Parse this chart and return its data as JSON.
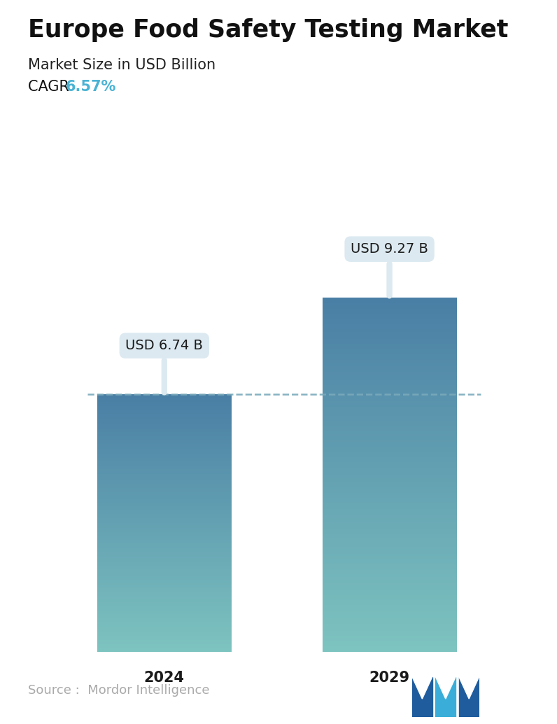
{
  "title": "Europe Food Safety Testing Market",
  "subtitle": "Market Size in USD Billion",
  "cagr_label": "CAGR ",
  "cagr_value": "6.57%",
  "cagr_color": "#4ab3d4",
  "categories": [
    "2024",
    "2029"
  ],
  "values": [
    6.74,
    9.27
  ],
  "labels": [
    "USD 6.74 B",
    "USD 9.27 B"
  ],
  "bar_color_top": "#4a7fa5",
  "bar_color_bottom": "#7ec4c0",
  "background_color": "#ffffff",
  "dashed_line_color": "#7aaabb",
  "source_text": "Source :  Mordor Intelligence",
  "source_color": "#aaaaaa",
  "title_fontsize": 25,
  "subtitle_fontsize": 15,
  "cagr_fontsize": 15,
  "label_fontsize": 14,
  "tick_fontsize": 15,
  "source_fontsize": 13,
  "ylim": [
    0,
    11
  ],
  "figsize": [
    7.96,
    10.34
  ],
  "dpi": 100
}
